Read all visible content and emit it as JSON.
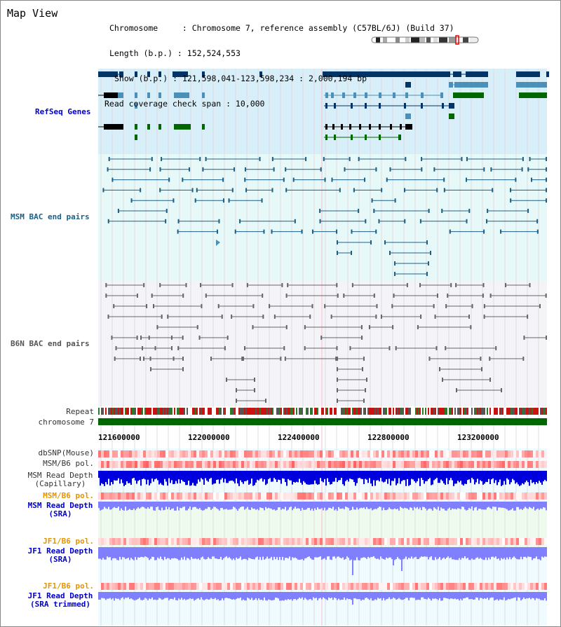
{
  "title": "Map View",
  "info": {
    "chromosome": "Chromosome     : Chromosome 7, reference assembly (C57BL/6J) (Build 37)",
    "length": "Length (b.p.) : 152,524,553",
    "show": "Show (b.p.) : 121,598,041-123,598,234 : 2,000,194 bp",
    "span": "Read coverage check span : 10,000"
  },
  "tracks": {
    "refseq": "RefSeq Genes",
    "msm_bac": "MSM BAC end pairs",
    "b6n_bac": "B6N BAC end pairs",
    "repeat": "Repeat",
    "chromosome": "chromosome 7",
    "dbsnp": "dbSNP(Mouse)",
    "msm_b6_pol": "MSM/B6 pol.",
    "msm_depth_cap": "MSM Read Depth",
    "msm_depth_cap_sub": "(Capillary)",
    "msm_b6_pol2": "MSM/B6 pol.",
    "msm_depth_sra": "MSM Read Depth",
    "msm_depth_sra_sub": "(SRA)",
    "jf1_b6_pol": "JF1/B6 pol.",
    "jf1_depth_sra": "JF1 Read Depth",
    "jf1_depth_sra_sub": "(SRA)",
    "jf1_b6_pol2": "JF1/B6 pol.",
    "jf1_depth_trim": "JF1 Read Depth",
    "jf1_depth_trim_sub": "(SRA trimmed)"
  },
  "axis_ticks": [
    "121600000",
    "122000000",
    "122400000",
    "122800000",
    "123200000"
  ],
  "colors": {
    "refseq_bg": "#d8effa",
    "msm_bg": "#e6f8f8",
    "b6n_bg": "#f4f4f8",
    "gene_navy": "#003366",
    "gene_teal": "#4a90b8",
    "gene_green": "#006600",
    "chromosome": "#006600",
    "depth_blue": "#0000dd",
    "depth_light": "#8080ff",
    "pol_red": "#ee3333"
  }
}
